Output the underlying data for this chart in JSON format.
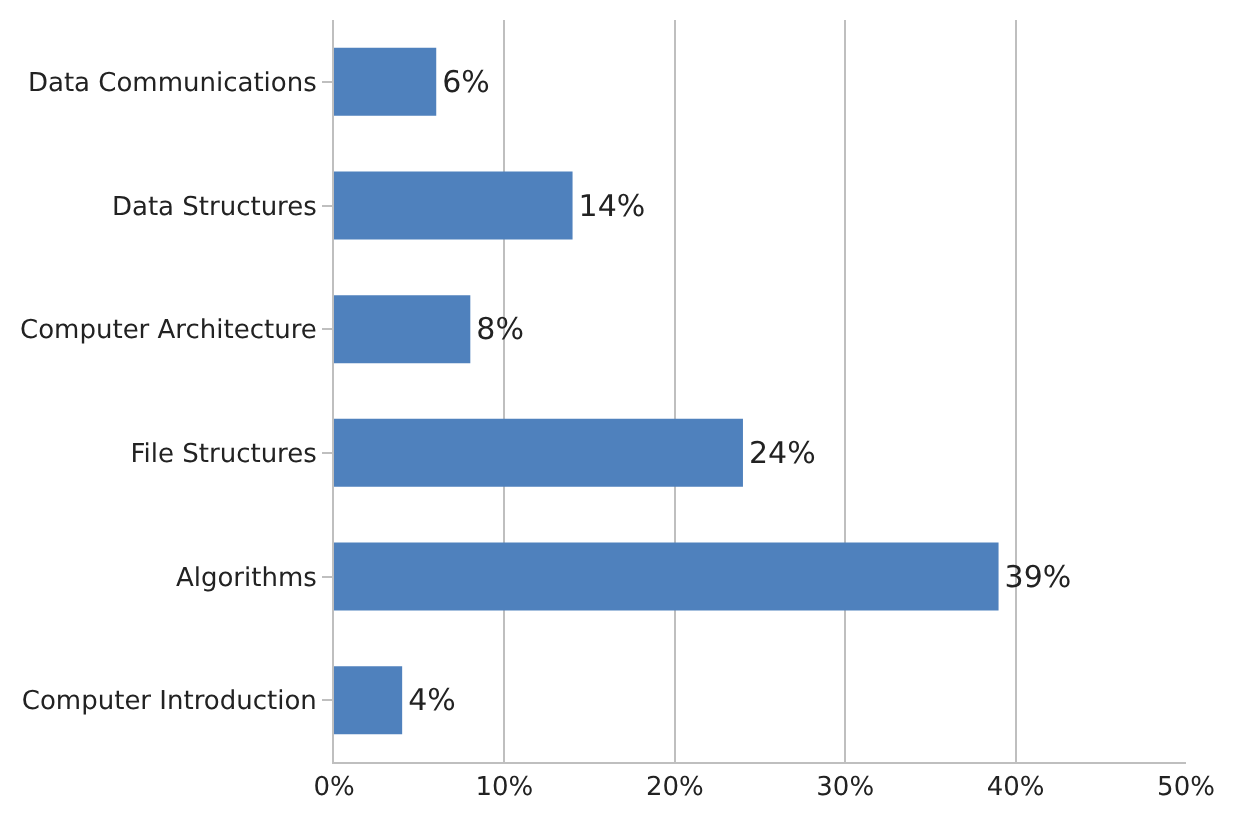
{
  "chart_data": {
    "type": "bar",
    "orientation": "horizontal",
    "categories": [
      "Data Communications",
      "Data Structures",
      "Computer Architecture",
      "File Structures",
      "Algorithms",
      "Computer Introduction"
    ],
    "values": [
      6,
      14,
      8,
      24,
      39,
      4
    ],
    "value_labels": [
      "6%",
      "14%",
      "8%",
      "24%",
      "39%",
      "4%"
    ],
    "color": "#4f81bd",
    "xlim": [
      0,
      50
    ],
    "xticks": [
      {
        "value": 0,
        "label": "0%"
      },
      {
        "value": 10,
        "label": "10%"
      },
      {
        "value": 20,
        "label": "20%"
      },
      {
        "value": 30,
        "label": "30%"
      },
      {
        "value": 40,
        "label": "40%"
      },
      {
        "value": 50,
        "label": "50%"
      }
    ],
    "grid": "x"
  }
}
